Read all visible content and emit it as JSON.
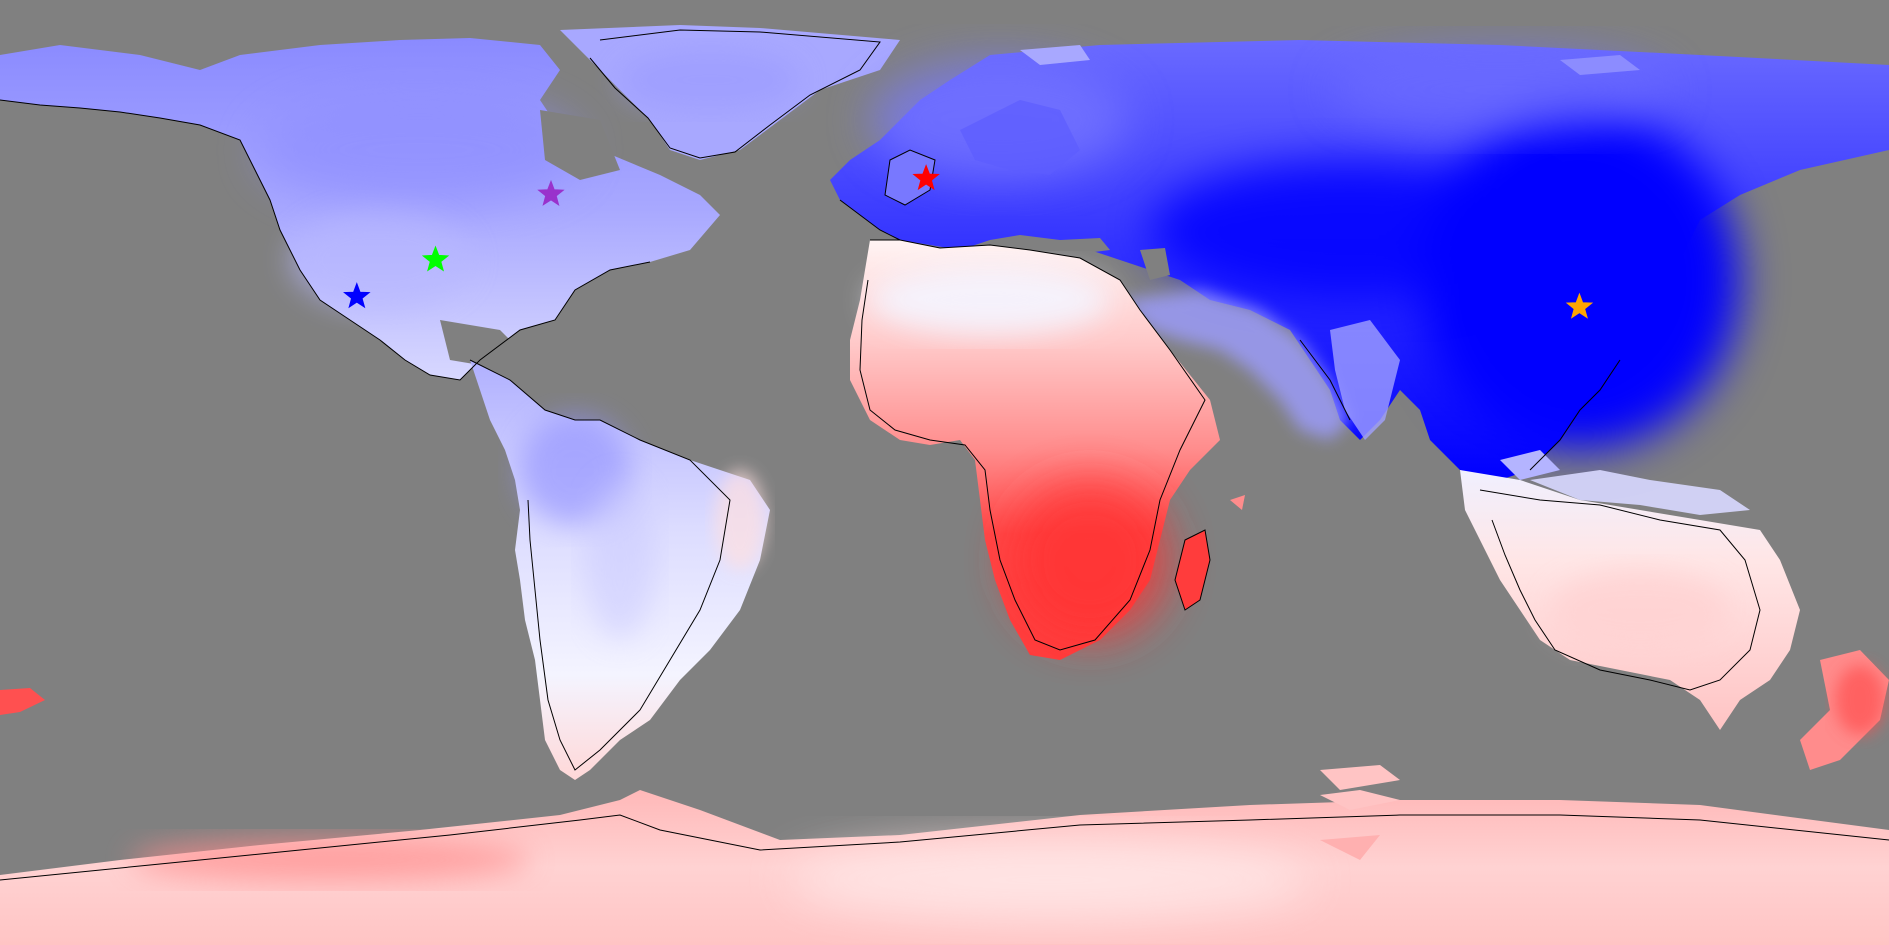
{
  "map": {
    "ocean_color": "#808080",
    "coastline_color": "#000000",
    "scale_colors": {
      "strong_negative": "#0000ff",
      "negative": "#5a5aff",
      "weak_negative": "#a8a8ff",
      "neutral": "#f4f4ff",
      "weak_positive": "#ffc8c8",
      "positive": "#ff8c8c",
      "strong_positive": "#ff3c3c"
    }
  },
  "markers": [
    {
      "name": "blue",
      "color": "#0000ff",
      "lon": -112,
      "lat": 33.5
    },
    {
      "name": "green",
      "color": "#00ff00",
      "lon": -97,
      "lat": 40.5
    },
    {
      "name": "purple",
      "color": "#9932cc",
      "lon": -75,
      "lat": 53
    },
    {
      "name": "red",
      "color": "#ff0000",
      "lon": -3.5,
      "lat": 56
    },
    {
      "name": "orange",
      "color": "#ffa500",
      "lon": 121,
      "lat": 31.5
    }
  ]
}
